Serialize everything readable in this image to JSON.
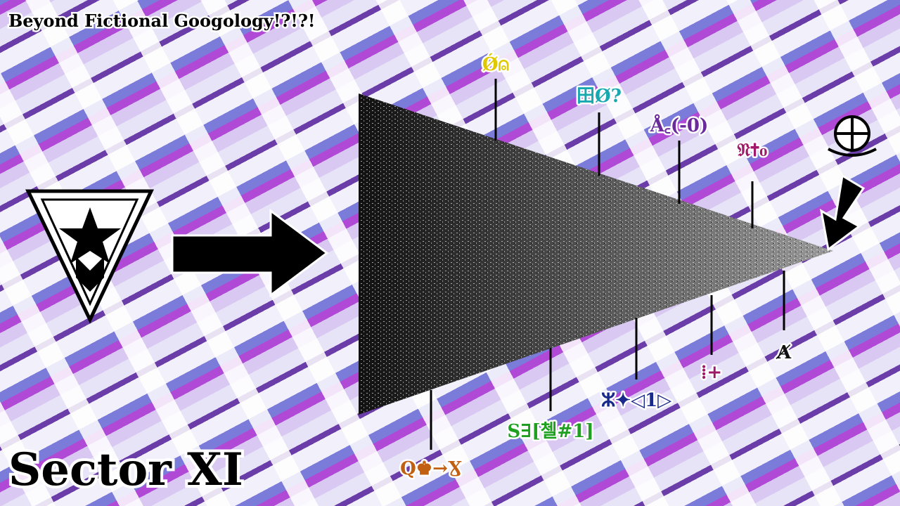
{
  "title": "Beyond Fictional Googology!?!?!",
  "subtitle": "Sector XI",
  "labels_top": [
    "Ǿ⍝",
    "田Ø?",
    "Å꜀(-0)",
    "𝔑✝₀"
  ],
  "labels_bottom": [
    "Q♚→Ɣ",
    "S∃[첼#1]",
    "ⵣ✦◁1▷",
    "⁞+",
    "A̸"
  ]
}
